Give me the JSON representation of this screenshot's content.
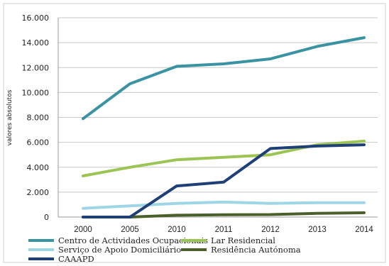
{
  "chart_data": {
    "type": "line",
    "title": "",
    "xlabel": "",
    "ylabel": "valores absolutos",
    "categories": [
      "2000",
      "2005",
      "2010",
      "2011",
      "2012",
      "2013",
      "2014"
    ],
    "ylim": [
      0,
      16000
    ],
    "yticks": [
      0,
      2000,
      4000,
      6000,
      8000,
      10000,
      12000,
      14000,
      16000
    ],
    "ytick_labels": [
      "0",
      "2.000",
      "4.000",
      "6.000",
      "8.000",
      "10.000",
      "12.000",
      "14.000",
      "16.000"
    ],
    "grid": "horizontal",
    "legend_position": "bottom",
    "series": [
      {
        "name": "Centro de Actividades Ocupacionais",
        "color": "#3a93a3",
        "values": [
          7900,
          10700,
          12100,
          12300,
          12700,
          13700,
          14400
        ]
      },
      {
        "name": "Lar Residencial",
        "color": "#9cc453",
        "values": [
          3300,
          4000,
          4600,
          4800,
          5000,
          5800,
          6100
        ]
      },
      {
        "name": "Serviço de Apoio Domiciliário",
        "color": "#9fd6e6",
        "values": [
          700,
          900,
          1100,
          1200,
          1100,
          1150,
          1150
        ]
      },
      {
        "name": "Residência Autónoma",
        "color": "#4a5f2a",
        "values": [
          0,
          0,
          150,
          180,
          200,
          300,
          350
        ]
      },
      {
        "name": "CAAAPD",
        "color": "#1f3f78",
        "values": [
          0,
          0,
          2500,
          2800,
          5500,
          5700,
          5800
        ]
      }
    ]
  }
}
